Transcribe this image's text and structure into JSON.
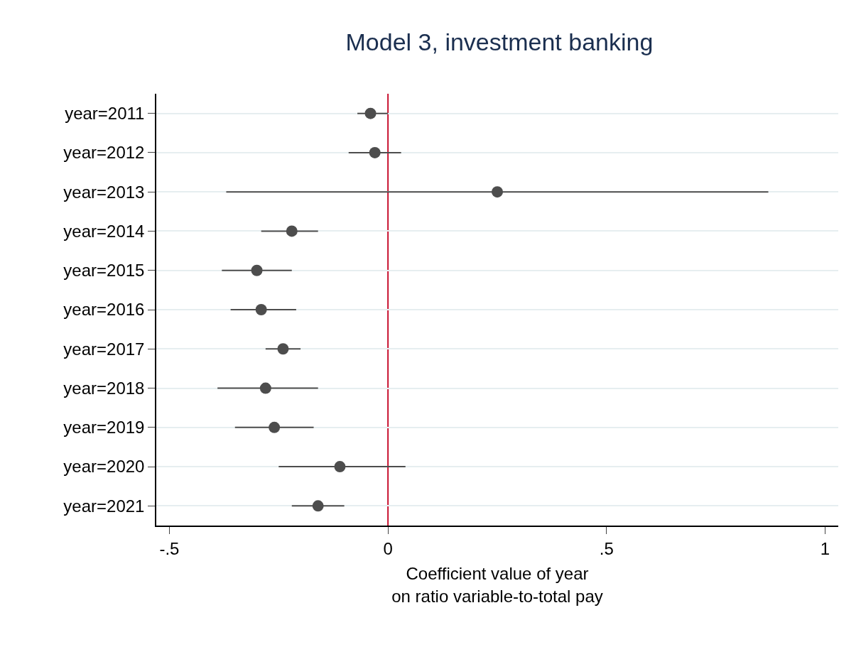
{
  "chart_data": {
    "type": "scatter",
    "orientation": "horizontal",
    "title": "Model 3, investment banking",
    "xlabel": "Coefficient value of year\non ratio variable-to-total pay",
    "categories": [
      "year=2011",
      "year=2012",
      "year=2013",
      "year=2014",
      "year=2015",
      "year=2016",
      "year=2017",
      "year=2018",
      "year=2019",
      "year=2020",
      "year=2021"
    ],
    "series": [
      {
        "color": "#4d4d4d",
        "values": [
          -0.04,
          -0.03,
          0.25,
          -0.22,
          -0.3,
          -0.29,
          -0.24,
          -0.28,
          -0.26,
          -0.11,
          -0.16
        ],
        "errors": [
          [
            -0.07,
            0.0
          ],
          [
            -0.09,
            0.03
          ],
          [
            -0.37,
            0.87
          ],
          [
            -0.29,
            -0.16
          ],
          [
            -0.38,
            -0.22
          ],
          [
            -0.36,
            -0.21
          ],
          [
            -0.28,
            -0.2
          ],
          [
            -0.39,
            -0.16
          ],
          [
            -0.35,
            -0.17
          ],
          [
            -0.25,
            0.04
          ],
          [
            -0.22,
            -0.1
          ]
        ]
      }
    ],
    "xlim": [
      -0.53,
      1.03
    ],
    "xticks": [
      {
        "value": -0.5,
        "label": "-.5"
      },
      0,
      {
        "value": 0.5,
        "label": ".5"
      },
      1
    ],
    "ref_lines": [
      {
        "axis": "x",
        "value": 0,
        "color": "#c8102e"
      }
    ],
    "grid": "y",
    "marker": "circle"
  }
}
